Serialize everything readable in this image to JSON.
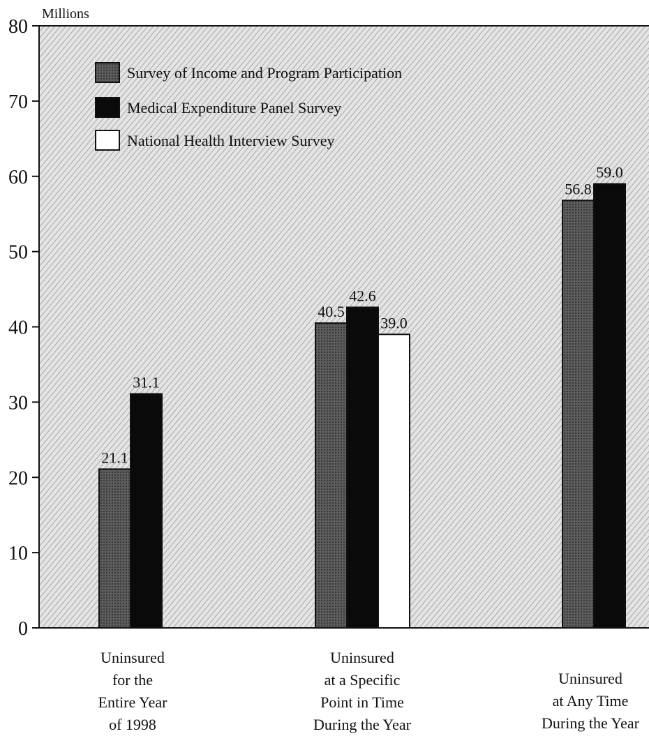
{
  "chart_data": {
    "type": "bar",
    "unit_label": "Millions",
    "title": "",
    "xlabel": "",
    "ylabel": "",
    "ylim": [
      0,
      80
    ],
    "yticks": [
      0,
      10,
      20,
      30,
      40,
      50,
      60,
      70,
      80
    ],
    "grid": false,
    "legend_position": "top-left",
    "categories": [
      [
        "Uninsured",
        "for the",
        "Entire Year",
        "of 1998"
      ],
      [
        "Uninsured",
        "at a Specific",
        "Point in Time",
        "During the Year"
      ],
      [
        "Uninsured",
        "at Any Time",
        "During the Year"
      ]
    ],
    "series": [
      {
        "name": "Survey of Income and Program Participation",
        "color": "#5a5a5a",
        "values": [
          21.1,
          40.5,
          56.8
        ],
        "labels": [
          "21.1",
          "40.5",
          "56.8"
        ]
      },
      {
        "name": "Medical Expenditure Panel Survey",
        "color": "#0a0a0a",
        "values": [
          31.1,
          42.6,
          59.0
        ],
        "labels": [
          "31.1",
          "42.6",
          "59.0"
        ]
      },
      {
        "name": "National Health Interview Survey",
        "color": "#ffffff",
        "values": [
          null,
          39.0,
          null
        ],
        "labels": [
          null,
          "39.0",
          null
        ]
      }
    ]
  }
}
